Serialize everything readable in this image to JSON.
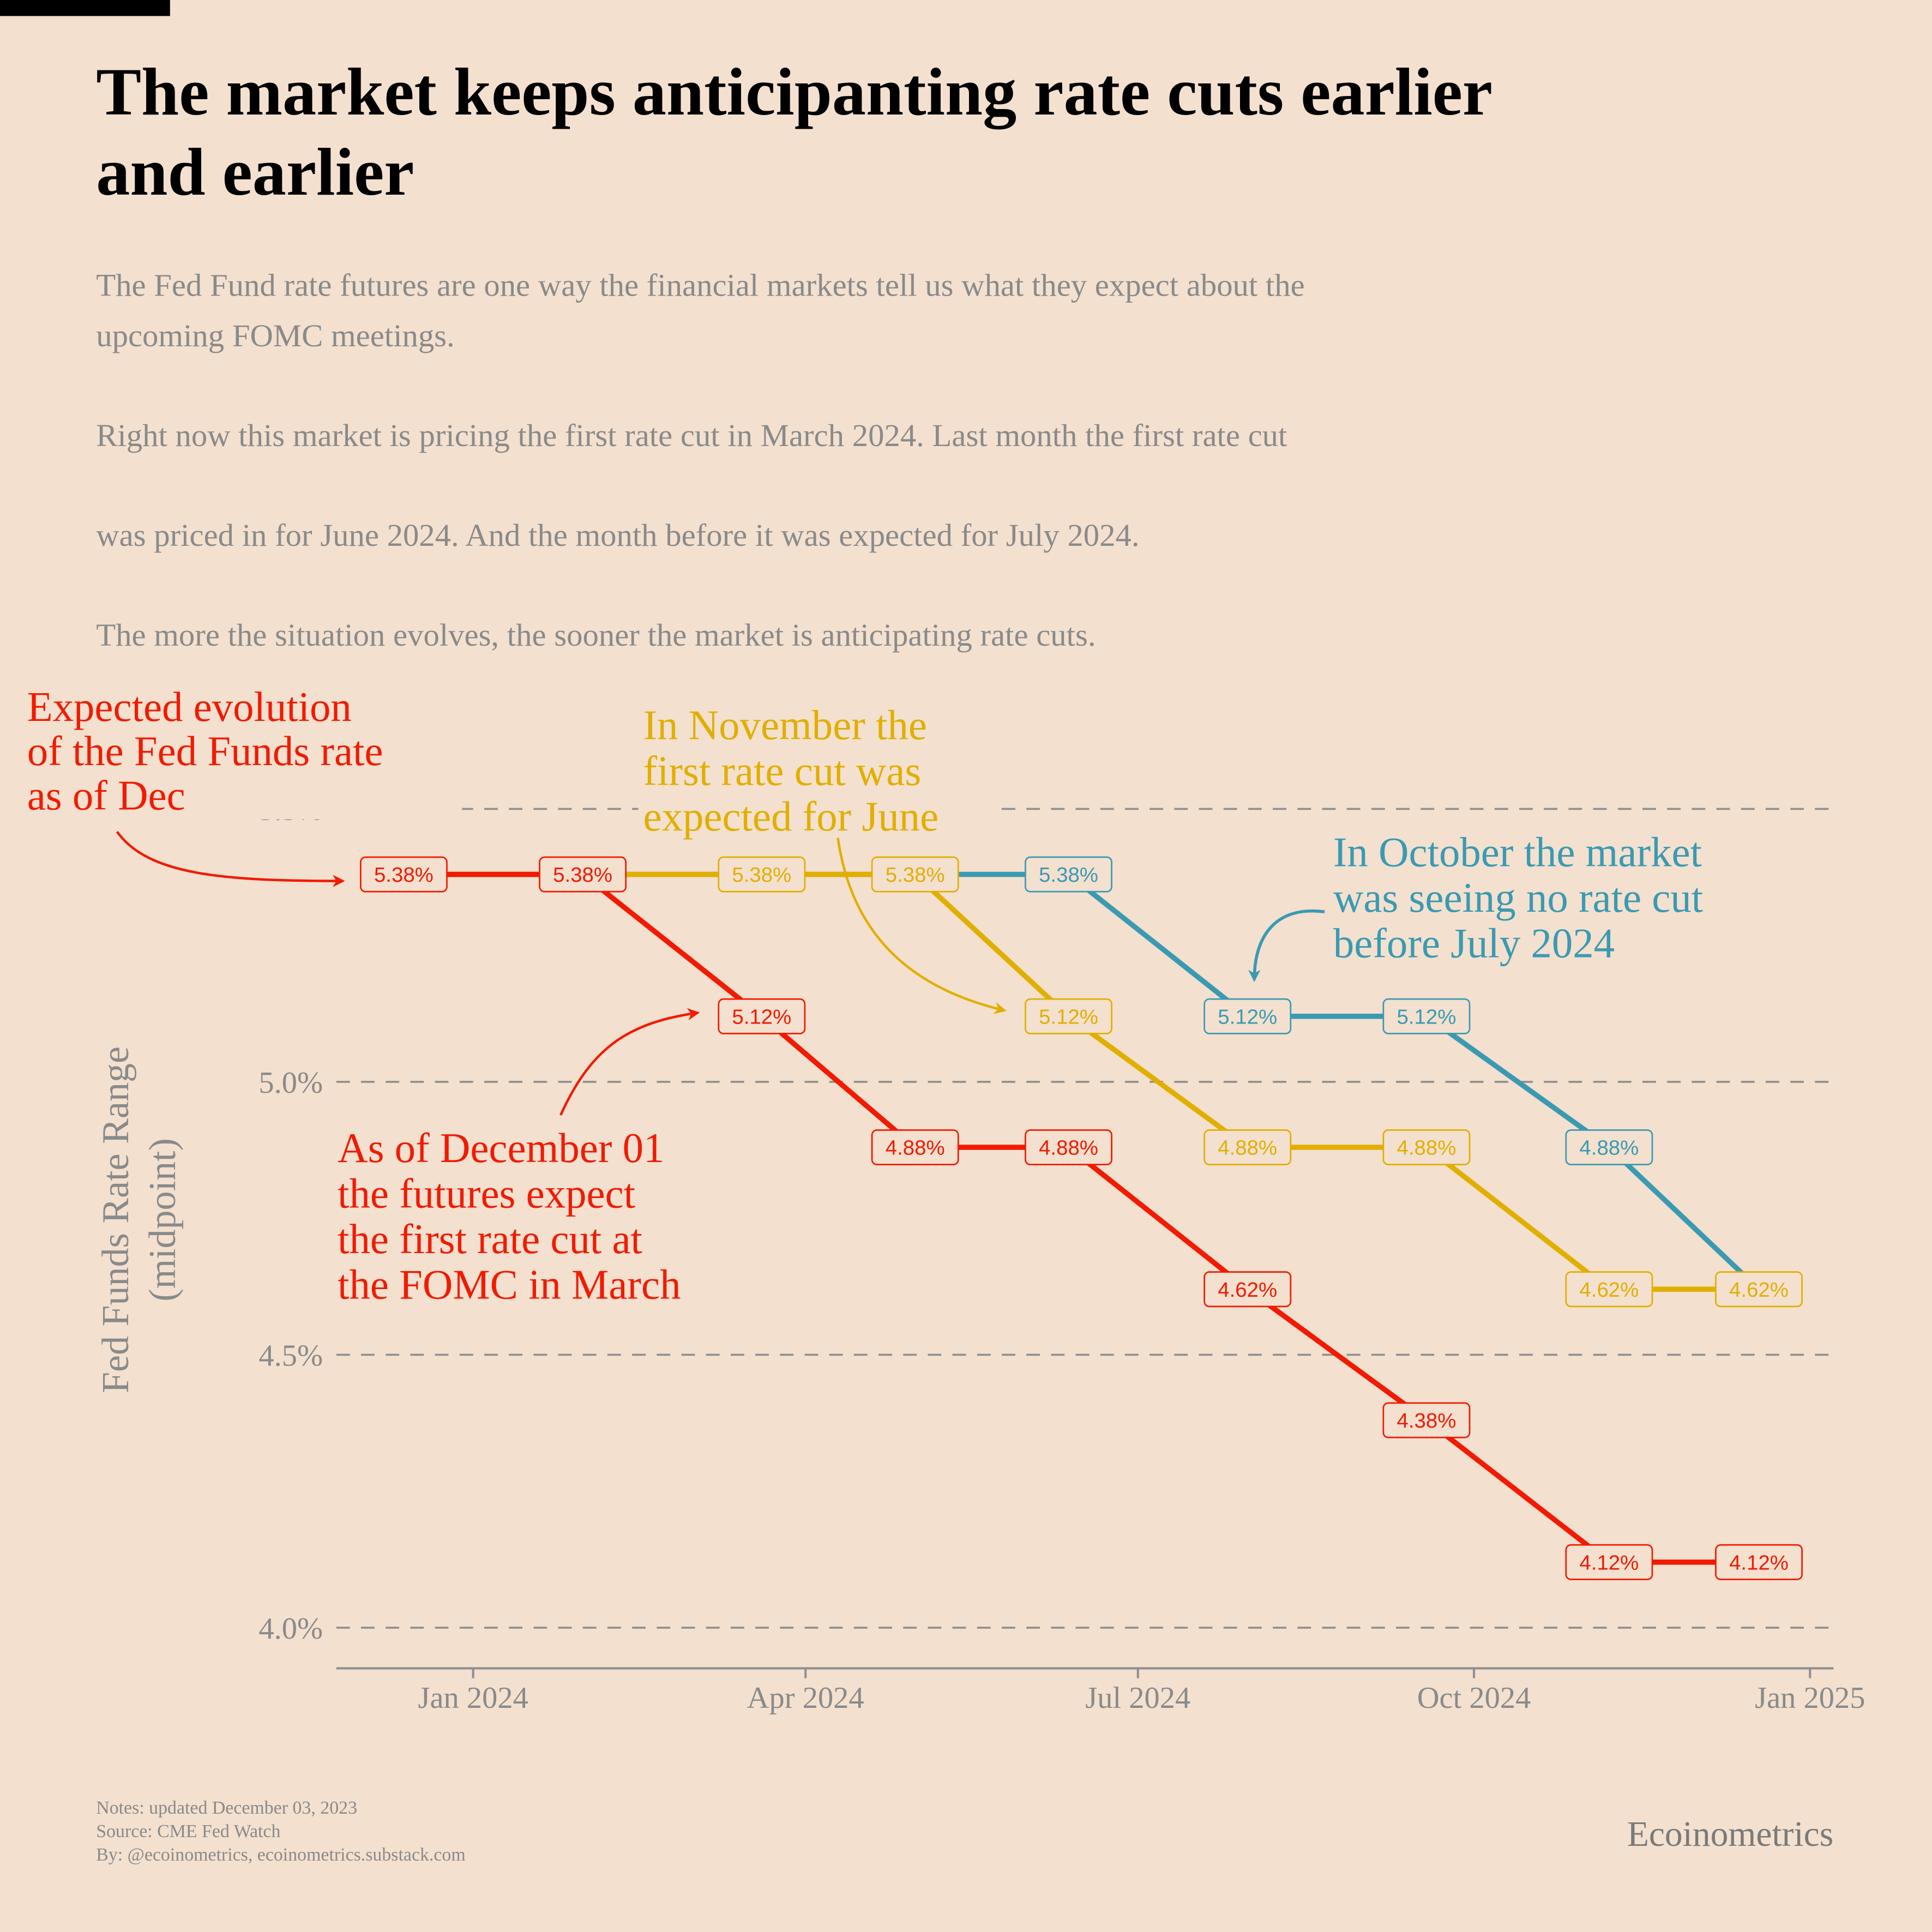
{
  "title_line1": "The market keeps anticipanting rate cuts earlier",
  "title_line2": "and earlier",
  "subtitle": [
    "The Fed Fund rate futures are one way the financial markets tell us what they expect about the",
    "upcoming FOMC meetings.",
    "Right now this market is pricing the first rate cut in March 2024. Last month the first rate cut",
    "was priced in for June 2024. And the month before it was expected for July 2024.",
    "The more the situation evolves, the sooner the market is anticipating rate cuts."
  ],
  "annotations": {
    "dec_top": [
      "Expected evolution",
      "of the Fed Funds rate",
      "as of Dec"
    ],
    "dec_bottom": [
      "As of December 01",
      "the futures expect",
      "the first rate cut at",
      "the FOMC in March"
    ],
    "nov": [
      "In November the",
      "first rate cut was",
      "expected for June"
    ],
    "oct": [
      "In October the market",
      "was seeing no rate cut",
      "before July 2024"
    ]
  },
  "footer": {
    "notes": "Notes: updated December 03, 2023",
    "source": "Source: CME Fed Watch",
    "by": "By: @ecoinometrics, ecoinometrics.substack.com",
    "brand": "Ecoinometrics"
  },
  "colors": {
    "background": "#f3e0cf",
    "dec": "#f21a00",
    "nov": "#e1af00",
    "oct": "#3b9ab2",
    "grid": "#8f8f8f",
    "text_muted": "#8a8a8a"
  },
  "chart_data": {
    "type": "line",
    "step_style": "connected points with value labels",
    "ylabel": "Fed Funds Rate Range (midpoint)",
    "ylabel_lines": [
      "Fed Funds Rate Range",
      "(midpoint)"
    ],
    "ylim": [
      3.93,
      5.56
    ],
    "yticks": [
      4.0,
      4.5,
      5.0,
      5.5
    ],
    "ytick_labels": [
      "4.0%",
      "4.5%",
      "5.0%",
      "5.5%"
    ],
    "xlim": [
      "2023-11-19",
      "2025-01-08"
    ],
    "xticks": [
      "2024-01-01",
      "2024-04-01",
      "2024-07-01",
      "2024-10-01",
      "2025-01-01"
    ],
    "xtick_labels": [
      "Jan 2024",
      "Apr 2024",
      "Jul 2024",
      "Oct 2024",
      "Jan 2025"
    ],
    "grid": "horizontal dashed",
    "x": [
      "2023-12-13",
      "2024-01-31",
      "2024-03-20",
      "2024-05-01",
      "2024-06-12",
      "2024-07-31",
      "2024-09-18",
      "2024-11-07",
      "2024-12-18"
    ],
    "series": [
      {
        "key": "oct",
        "values": [
          5.38,
          5.38,
          5.38,
          5.38,
          5.38,
          5.12,
          5.12,
          4.88,
          4.62
        ]
      },
      {
        "key": "nov",
        "values": [
          5.38,
          5.38,
          5.38,
          5.38,
          5.12,
          4.88,
          4.88,
          4.62,
          4.62
        ]
      },
      {
        "key": "dec",
        "values": [
          5.38,
          5.38,
          5.12,
          4.88,
          4.88,
          4.62,
          4.38,
          4.12,
          4.12
        ]
      }
    ]
  }
}
